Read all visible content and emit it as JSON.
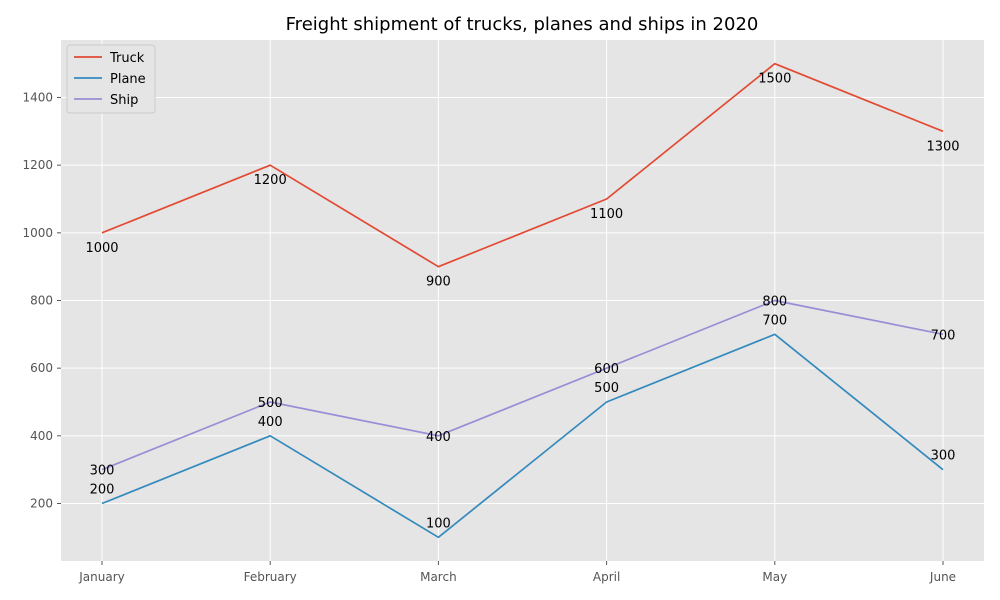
{
  "chart_data": {
    "type": "line",
    "title": "Freight shipment of trucks, planes and ships in 2020",
    "xlabel": "",
    "ylabel": "",
    "categories": [
      "January",
      "February",
      "March",
      "April",
      "May",
      "June"
    ],
    "ylim": [
      30,
      1570
    ],
    "yticks": [
      200,
      400,
      600,
      800,
      1000,
      1200,
      1400
    ],
    "grid": true,
    "legend_position": "top-left",
    "series": [
      {
        "name": "Truck",
        "color": "#E24A33",
        "values": [
          1000,
          1200,
          900,
          1100,
          1500,
          1300
        ],
        "label_position": "below"
      },
      {
        "name": "Plane",
        "color": "#348ABD",
        "values": [
          200,
          400,
          100,
          500,
          700,
          300
        ],
        "label_position": "above"
      },
      {
        "name": "Ship",
        "color": "#988ED5",
        "values": [
          300,
          500,
          400,
          600,
          800,
          700
        ],
        "label_position": "center"
      }
    ]
  },
  "style": {
    "plot_background": "#E5E5E5",
    "grid_color": "#FFFFFF",
    "tick_color": "#555555"
  }
}
